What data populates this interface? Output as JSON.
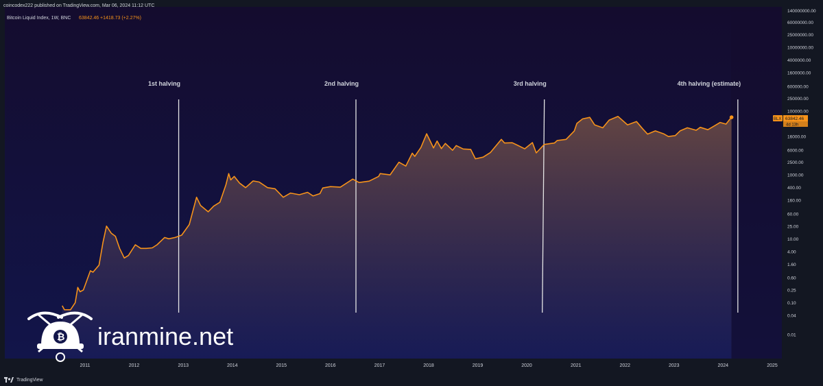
{
  "header": {
    "published_text": "coincodex222 published on TradingView.com, Mar 06, 2024 11:12 UTC"
  },
  "footer": {
    "brand_text": "TradingView"
  },
  "watermark": {
    "text": "iranmine.net"
  },
  "chart_data": {
    "type": "line",
    "y_scale": "log",
    "symbol_info": {
      "name": "Bitcoin Liquid Index, 1W, BNC",
      "price": "63842.46",
      "change": "+1418.73 (+2.27%)"
    },
    "price_tag": {
      "symbol": "BLX",
      "price": "63842.46",
      "countdown": "4d 13h"
    },
    "x_ticks": [
      "2011",
      "2012",
      "2013",
      "2014",
      "2015",
      "2016",
      "2017",
      "2018",
      "2019",
      "2020",
      "2021",
      "2022",
      "2023",
      "2024",
      "2025"
    ],
    "y_ticks": [
      {
        "value": 140000000,
        "label": "140000000.00"
      },
      {
        "value": 60000000,
        "label": "60000000.00"
      },
      {
        "value": 25000000,
        "label": "25000000.00"
      },
      {
        "value": 10000000,
        "label": "10000000.00"
      },
      {
        "value": 4000000,
        "label": "4000000.00"
      },
      {
        "value": 1600000,
        "label": "1600000.00"
      },
      {
        "value": 600000,
        "label": "600000.00"
      },
      {
        "value": 250000,
        "label": "250000.00"
      },
      {
        "value": 100000,
        "label": "100000.00"
      },
      {
        "value": 16000,
        "label": "16000.00"
      },
      {
        "value": 6000,
        "label": "6000.00"
      },
      {
        "value": 2500,
        "label": "2500.00"
      },
      {
        "value": 1000,
        "label": "1000.00"
      },
      {
        "value": 400,
        "label": "400.00"
      },
      {
        "value": 160,
        "label": "160.00"
      },
      {
        "value": 60,
        "label": "60.00"
      },
      {
        "value": 25,
        "label": "25.00"
      },
      {
        "value": 10,
        "label": "10.00"
      },
      {
        "value": 4,
        "label": "4.00"
      },
      {
        "value": 1.6,
        "label": "1.60"
      },
      {
        "value": 0.6,
        "label": "0.60"
      },
      {
        "value": 0.25,
        "label": "0.25"
      },
      {
        "value": 0.1,
        "label": "0.10"
      },
      {
        "value": 0.04,
        "label": "0.04"
      },
      {
        "value": 0.01,
        "label": "0.01"
      }
    ],
    "series": [
      {
        "points": [
          [
            "2010-07-15",
            0.08
          ],
          [
            "2010-08-01",
            0.06
          ],
          [
            "2010-09-15",
            0.06
          ],
          [
            "2010-10-20",
            0.1
          ],
          [
            "2010-11-08",
            0.3
          ],
          [
            "2010-11-25",
            0.22
          ],
          [
            "2010-12-20",
            0.25
          ],
          [
            "2011-02-10",
            1.0
          ],
          [
            "2011-03-01",
            0.9
          ],
          [
            "2011-04-15",
            1.5
          ],
          [
            "2011-05-15",
            8
          ],
          [
            "2011-06-10",
            25
          ],
          [
            "2011-07-15",
            15
          ],
          [
            "2011-08-15",
            12
          ],
          [
            "2011-09-15",
            5
          ],
          [
            "2011-10-20",
            2.5
          ],
          [
            "2011-11-20",
            3.0
          ],
          [
            "2012-01-10",
            6.5
          ],
          [
            "2012-02-20",
            5
          ],
          [
            "2012-04-01",
            5
          ],
          [
            "2012-05-15",
            5.2
          ],
          [
            "2012-06-20",
            6.5
          ],
          [
            "2012-08-15",
            11
          ],
          [
            "2012-09-15",
            10
          ],
          [
            "2012-11-01",
            11
          ],
          [
            "2012-12-20",
            13
          ],
          [
            "2013-02-15",
            28
          ],
          [
            "2013-04-10",
            200
          ],
          [
            "2013-05-10",
            110
          ],
          [
            "2013-07-05",
            70
          ],
          [
            "2013-08-15",
            105
          ],
          [
            "2013-10-01",
            140
          ],
          [
            "2013-11-15",
            500
          ],
          [
            "2013-12-05",
            1100
          ],
          [
            "2013-12-20",
            700
          ],
          [
            "2014-01-15",
            900
          ],
          [
            "2014-02-25",
            550
          ],
          [
            "2014-04-10",
            400
          ],
          [
            "2014-06-05",
            650
          ],
          [
            "2014-07-20",
            600
          ],
          [
            "2014-09-20",
            400
          ],
          [
            "2014-11-15",
            370
          ],
          [
            "2015-01-15",
            200
          ],
          [
            "2015-03-10",
            270
          ],
          [
            "2015-05-15",
            240
          ],
          [
            "2015-07-15",
            285
          ],
          [
            "2015-08-25",
            220
          ],
          [
            "2015-10-15",
            260
          ],
          [
            "2015-11-05",
            390
          ],
          [
            "2016-01-01",
            430
          ],
          [
            "2016-03-15",
            415
          ],
          [
            "2016-06-15",
            740
          ],
          [
            "2016-08-01",
            580
          ],
          [
            "2016-10-15",
            640
          ],
          [
            "2016-12-25",
            900
          ],
          [
            "2017-01-05",
            1100
          ],
          [
            "2017-03-20",
            1000
          ],
          [
            "2017-05-25",
            2500
          ],
          [
            "2017-07-15",
            1900
          ],
          [
            "2017-09-01",
            4800
          ],
          [
            "2017-09-20",
            3800
          ],
          [
            "2017-11-05",
            7300
          ],
          [
            "2017-12-17",
            19500
          ],
          [
            "2018-01-15",
            11000
          ],
          [
            "2018-02-06",
            7000
          ],
          [
            "2018-03-05",
            11500
          ],
          [
            "2018-04-06",
            6700
          ],
          [
            "2018-05-05",
            9700
          ],
          [
            "2018-06-28",
            5900
          ],
          [
            "2018-07-25",
            8300
          ],
          [
            "2018-09-15",
            6500
          ],
          [
            "2018-11-10",
            6300
          ],
          [
            "2018-12-15",
            3200
          ],
          [
            "2019-02-10",
            3600
          ],
          [
            "2019-04-05",
            5000
          ],
          [
            "2019-06-26",
            13000
          ],
          [
            "2019-07-20",
            10000
          ],
          [
            "2019-09-15",
            10200
          ],
          [
            "2019-10-25",
            8500
          ],
          [
            "2019-12-17",
            6600
          ],
          [
            "2020-02-12",
            10300
          ],
          [
            "2020-03-12",
            4900
          ],
          [
            "2020-05-10",
            9000
          ],
          [
            "2020-07-25",
            10000
          ],
          [
            "2020-08-15",
            12000
          ],
          [
            "2020-10-20",
            13000
          ],
          [
            "2020-12-20",
            24000
          ],
          [
            "2021-01-08",
            41000
          ],
          [
            "2021-02-20",
            57000
          ],
          [
            "2021-04-14",
            63500
          ],
          [
            "2021-05-20",
            37000
          ],
          [
            "2021-07-20",
            30000
          ],
          [
            "2021-09-05",
            52000
          ],
          [
            "2021-11-10",
            68000
          ],
          [
            "2022-01-20",
            37000
          ],
          [
            "2022-03-28",
            47000
          ],
          [
            "2022-05-12",
            28000
          ],
          [
            "2022-06-18",
            19000
          ],
          [
            "2022-08-15",
            24000
          ],
          [
            "2022-10-15",
            19500
          ],
          [
            "2022-11-20",
            16000
          ],
          [
            "2023-01-10",
            17000
          ],
          [
            "2023-02-15",
            24000
          ],
          [
            "2023-04-10",
            30000
          ],
          [
            "2023-06-15",
            25000
          ],
          [
            "2023-07-15",
            31000
          ],
          [
            "2023-09-10",
            26000
          ],
          [
            "2023-11-01",
            35000
          ],
          [
            "2023-12-10",
            44000
          ],
          [
            "2024-01-23",
            39000
          ],
          [
            "2024-02-15",
            52000
          ],
          [
            "2024-03-04",
            63842.46
          ]
        ]
      }
    ],
    "annotations": [
      {
        "date": "2012-11-28",
        "label": "1st halving"
      },
      {
        "date": "2016-07-09",
        "label": "2nd halving"
      },
      {
        "date": "2020-05-11",
        "label": "3rd halving"
      },
      {
        "date": "2024-04-20",
        "label": "4th halving (estimate)"
      }
    ],
    "colors": {
      "background_top": "#140c2e",
      "background_bottom": "#12154a",
      "line": "#f7931a",
      "area_top": "#6b4a44",
      "area_bottom": "#1b1f5e",
      "axis_bg": "#131722",
      "text": "#d1d4dc",
      "halving_line": "#e6e6e6"
    }
  }
}
